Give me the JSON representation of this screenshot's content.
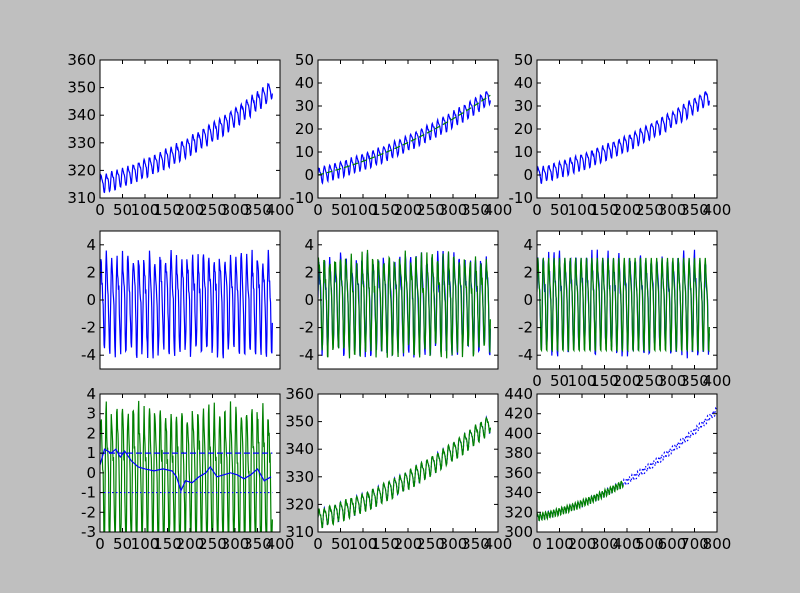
{
  "figure": {
    "background": "#bfbfbf",
    "rows": 3,
    "cols": 3
  },
  "colors": {
    "blue": "#0000ff",
    "green": "#008000"
  },
  "chart_data": [
    {
      "type": "line",
      "title": "",
      "xlabel": "",
      "ylabel": "",
      "grid": false,
      "xlim": [
        0,
        400
      ],
      "ylim": [
        310,
        360
      ],
      "xticks": [
        0,
        50,
        100,
        150,
        200,
        250,
        300,
        350,
        400
      ],
      "yticks": [
        310,
        320,
        330,
        340,
        350,
        360
      ],
      "series": [
        {
          "kind": "seasonal_trend",
          "color": "#0000ff",
          "style": "solid",
          "n": 384,
          "base": 315,
          "lin": 0.0488,
          "quad": 0.000109,
          "amp": 3.0,
          "period": 12,
          "noise": 0.45
        }
      ]
    },
    {
      "type": "line",
      "title": "",
      "xlabel": "",
      "ylabel": "",
      "grid": false,
      "xlim": [
        0,
        400
      ],
      "ylim": [
        -10,
        50
      ],
      "xticks": [
        0,
        50,
        100,
        150,
        200,
        250,
        300,
        350,
        400
      ],
      "yticks": [
        -10,
        0,
        10,
        20,
        30,
        40,
        50
      ],
      "series": [
        {
          "kind": "seasonal_trend",
          "color": "#0000ff",
          "style": "solid",
          "n": 384,
          "base": 0,
          "lin": 0.0488,
          "quad": 0.000109,
          "amp": 3.0,
          "period": 12,
          "noise": 0.45
        },
        {
          "kind": "trend",
          "color": "#008000",
          "style": "dashed",
          "n": 384,
          "base": 0,
          "lin": 0.0488,
          "quad": 0.000109
        }
      ]
    },
    {
      "type": "line",
      "title": "",
      "xlabel": "",
      "ylabel": "",
      "grid": false,
      "xlim": [
        0,
        400
      ],
      "ylim": [
        -10,
        50
      ],
      "xticks": [
        0,
        50,
        100,
        150,
        200,
        250,
        300,
        350,
        400
      ],
      "yticks": [
        -10,
        0,
        10,
        20,
        30,
        40,
        50
      ],
      "series": [
        {
          "kind": "seasonal_trend",
          "color": "#0000ff",
          "style": "solid",
          "n": 384,
          "base": 0,
          "lin": 0.0488,
          "quad": 0.000109,
          "amp": 3.0,
          "period": 12,
          "noise": 0.45
        }
      ]
    },
    {
      "type": "line",
      "title": "",
      "xlabel": "",
      "ylabel": "",
      "grid": false,
      "xlim": [
        0,
        400
      ],
      "ylim": [
        -5,
        5
      ],
      "xticks": [],
      "yticks": [
        -4,
        -2,
        0,
        2,
        4
      ],
      "series": [
        {
          "kind": "seasonal",
          "color": "#0000ff",
          "style": "solid",
          "n": 384,
          "amp": 3.0,
          "period": 12,
          "noise": 0.6
        }
      ]
    },
    {
      "type": "line",
      "title": "",
      "xlabel": "",
      "ylabel": "",
      "grid": false,
      "xlim": [
        0,
        400
      ],
      "ylim": [
        -5,
        5
      ],
      "xticks": [],
      "yticks": [
        -4,
        -2,
        0,
        2,
        4
      ],
      "series": [
        {
          "kind": "seasonal",
          "color": "#0000ff",
          "style": "solid",
          "n": 384,
          "amp": 3.0,
          "period": 12,
          "noise": 0.6
        },
        {
          "kind": "seasonal",
          "color": "#008000",
          "style": "solid",
          "n": 384,
          "amp": 3.0,
          "period": 12,
          "noise": 0.6
        }
      ]
    },
    {
      "type": "line",
      "title": "",
      "xlabel": "",
      "ylabel": "",
      "grid": false,
      "xlim": [
        0,
        400
      ],
      "ylim": [
        -5,
        5
      ],
      "xticks": [
        0,
        50,
        100,
        150,
        200,
        250,
        300,
        350,
        400
      ],
      "yticks": [
        -4,
        -2,
        0,
        2,
        4
      ],
      "series": [
        {
          "kind": "seasonal",
          "color": "#0000ff",
          "style": "solid",
          "n": 384,
          "amp": 3.0,
          "period": 12,
          "noise": 0.6
        },
        {
          "kind": "seasonal",
          "color": "#008000",
          "style": "solid",
          "n": 384,
          "amp": 3.0,
          "period": 12,
          "noise": 0.0
        }
      ]
    },
    {
      "type": "line",
      "title": "",
      "xlabel": "",
      "ylabel": "",
      "grid": false,
      "xlim": [
        0,
        400
      ],
      "ylim": [
        -3,
        4
      ],
      "xticks": [
        0,
        50,
        100,
        150,
        200,
        250,
        300,
        350,
        400
      ],
      "yticks": [
        -3,
        -2,
        -1,
        0,
        1,
        2,
        3,
        4
      ],
      "series": [
        {
          "kind": "seasonal",
          "color": "#008000",
          "style": "solid",
          "n": 384,
          "amp": 3.0,
          "period": 12,
          "noise": 0.6
        },
        {
          "kind": "constant",
          "color": "#0000ff",
          "style": "dashed",
          "value": 1.0,
          "n": 384
        },
        {
          "kind": "constant",
          "color": "#0000ff",
          "style": "dotted",
          "value": -1.0,
          "n": 384
        },
        {
          "kind": "walk",
          "color": "#0000ff",
          "style": "solid",
          "n": 384,
          "points": [
            [
              0,
              0.4
            ],
            [
              10,
              1.2
            ],
            [
              25,
              1.0
            ],
            [
              35,
              1.2
            ],
            [
              45,
              0.8
            ],
            [
              55,
              1.1
            ],
            [
              70,
              0.6
            ],
            [
              85,
              0.3
            ],
            [
              100,
              0.2
            ],
            [
              120,
              0.1
            ],
            [
              140,
              0.2
            ],
            [
              160,
              0.1
            ],
            [
              170,
              -0.2
            ],
            [
              180,
              -0.9
            ],
            [
              190,
              -0.4
            ],
            [
              205,
              -0.5
            ],
            [
              220,
              -0.2
            ],
            [
              235,
              0.0
            ],
            [
              245,
              0.3
            ],
            [
              260,
              -0.2
            ],
            [
              275,
              -0.1
            ],
            [
              290,
              0.0
            ],
            [
              305,
              -0.1
            ],
            [
              320,
              -0.3
            ],
            [
              335,
              -0.1
            ],
            [
              350,
              0.2
            ],
            [
              365,
              -0.4
            ],
            [
              380,
              -0.2
            ]
          ]
        }
      ]
    },
    {
      "type": "line",
      "title": "",
      "xlabel": "",
      "ylabel": "",
      "grid": false,
      "xlim": [
        0,
        400
      ],
      "ylim": [
        310,
        360
      ],
      "xticks": [
        0,
        50,
        100,
        150,
        200,
        250,
        300,
        350,
        400
      ],
      "yticks": [
        310,
        320,
        330,
        340,
        350,
        360
      ],
      "series": [
        {
          "kind": "seasonal_trend",
          "color": "#0000ff",
          "style": "dotted",
          "n": 384,
          "base": 315,
          "lin": 0.0488,
          "quad": 0.000109,
          "amp": 3.0,
          "period": 12,
          "noise": 0.0
        },
        {
          "kind": "seasonal_trend",
          "color": "#008000",
          "style": "solid",
          "n": 384,
          "base": 315,
          "lin": 0.0488,
          "quad": 0.000109,
          "amp": 3.0,
          "period": 12,
          "noise": 0.45
        }
      ]
    },
    {
      "type": "line",
      "title": "",
      "xlabel": "",
      "ylabel": "",
      "grid": false,
      "xlim": [
        0,
        800
      ],
      "ylim": [
        300,
        440
      ],
      "xticks": [
        0,
        100,
        200,
        300,
        400,
        500,
        600,
        700,
        800
      ],
      "yticks": [
        300,
        320,
        340,
        360,
        380,
        400,
        420,
        440
      ],
      "series": [
        {
          "kind": "seasonal_trend",
          "color": "#0000ff",
          "style": "dotted",
          "n": 800,
          "base": 315,
          "lin": 0.0488,
          "quad": 0.000109,
          "amp": 3.0,
          "period": 12,
          "noise": 0.0
        },
        {
          "kind": "seasonal_trend",
          "color": "#008000",
          "style": "solid",
          "n": 384,
          "base": 315,
          "lin": 0.0488,
          "quad": 0.000109,
          "amp": 3.0,
          "period": 12,
          "noise": 0.45
        }
      ]
    }
  ]
}
